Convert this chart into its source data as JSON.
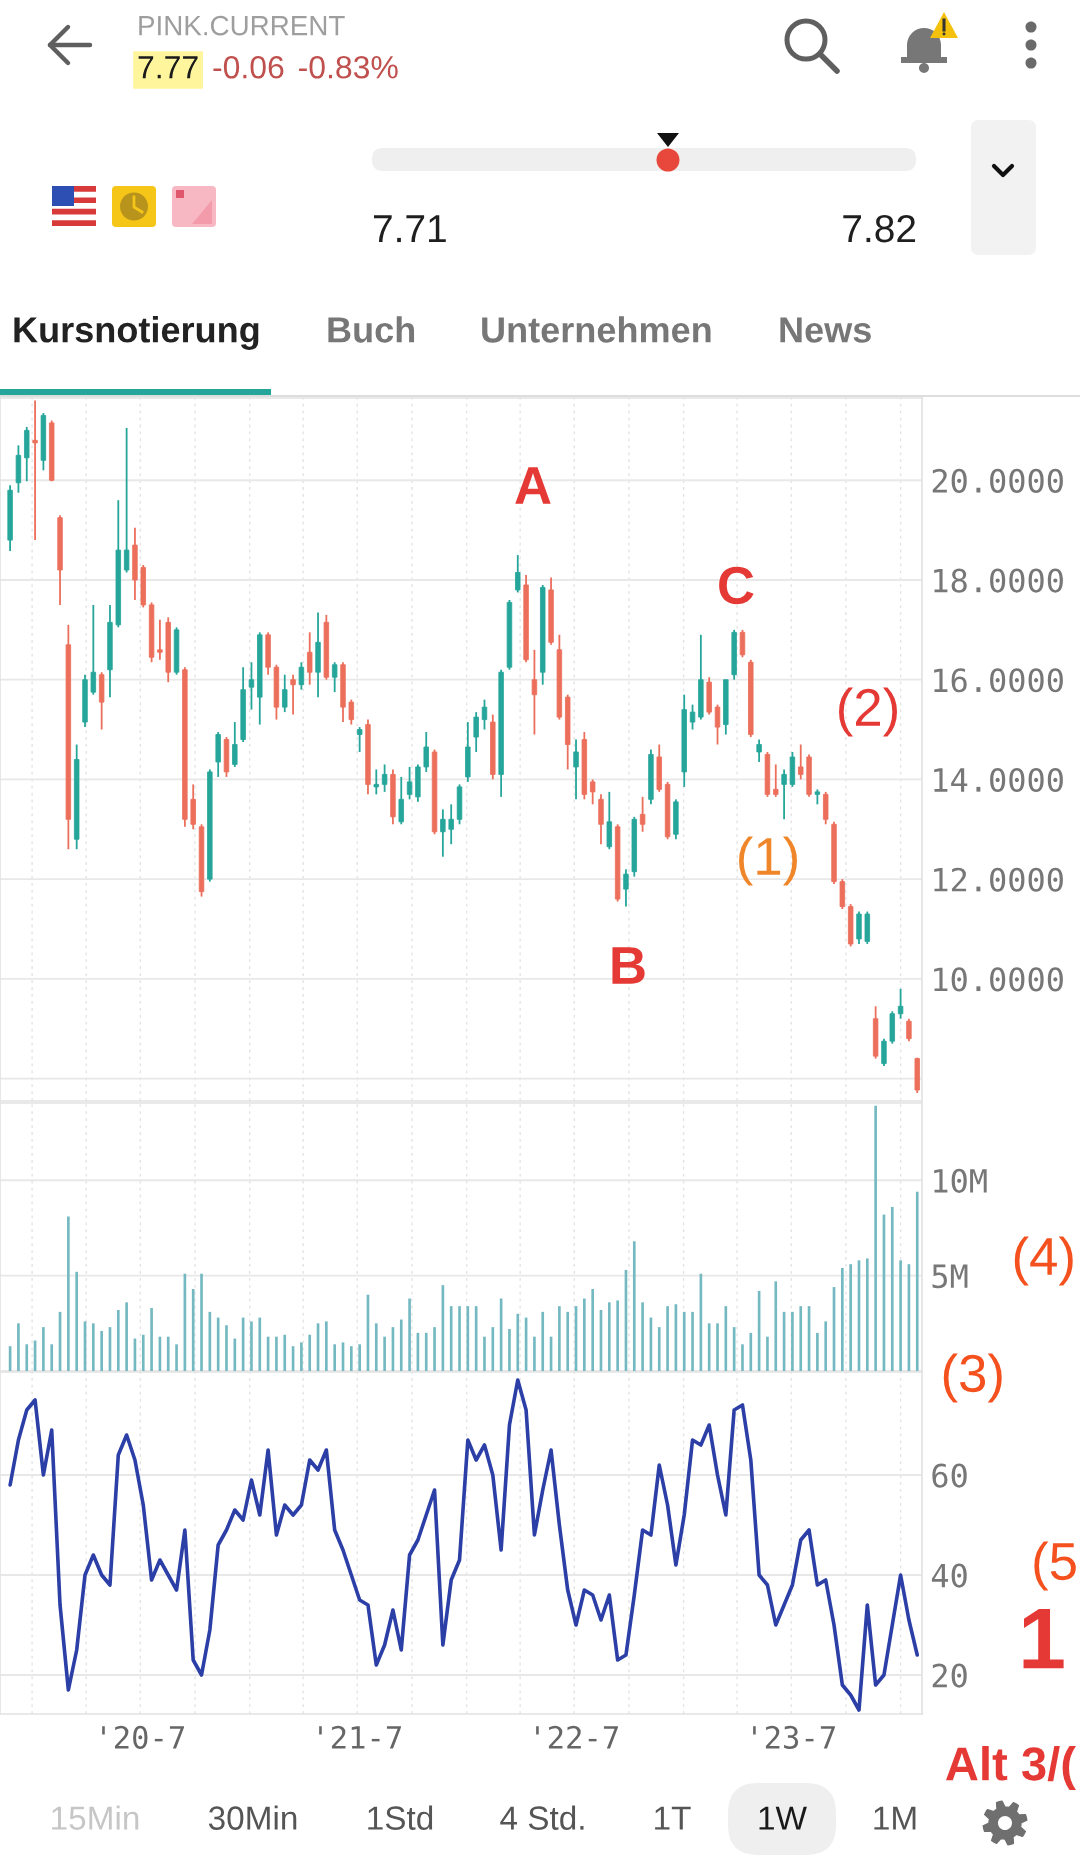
{
  "chart_data": [
    {
      "type": "other",
      "title": "PINK.CURRENT",
      "annotations": [
        "7.77",
        "-0.06",
        "-0.83%"
      ]
    },
    {
      "type": "other",
      "annotations": [
        "7.71",
        "7.82"
      ]
    },
    {
      "type": "other",
      "annotations": [
        "Kursnotierung",
        "Buch",
        "Unternehmen",
        "News"
      ]
    },
    {
      "type": "candlestick",
      "x": [
        "2019-11-25",
        "2019-12-09",
        "2019-12-23",
        "2020-01-06",
        "2020-01-20",
        "2020-02-03",
        "2020-02-17",
        "2020-03-02",
        "2020-03-16",
        "2020-03-30",
        "2020-04-13",
        "2020-04-27",
        "2020-05-11",
        "2020-05-25",
        "2020-06-08",
        "2020-06-22",
        "2020-07-06",
        "2020-07-20",
        "2020-08-03",
        "2020-08-17",
        "2020-08-31",
        "2020-09-14",
        "2020-09-28",
        "2020-10-12",
        "2020-10-26",
        "2020-11-09",
        "2020-11-23",
        "2020-12-07",
        "2020-12-21",
        "2021-01-04",
        "2021-01-18",
        "2021-02-01",
        "2021-02-15",
        "2021-03-01",
        "2021-03-15",
        "2021-03-29",
        "2021-04-12",
        "2021-04-26",
        "2021-05-10",
        "2021-05-24",
        "2021-06-07",
        "2021-06-21",
        "2021-07-05",
        "2021-07-19",
        "2021-08-02",
        "2021-08-16",
        "2021-08-30",
        "2021-09-13",
        "2021-09-27",
        "2021-10-11",
        "2021-10-25",
        "2021-11-08",
        "2021-11-22",
        "2021-12-06",
        "2021-12-20",
        "2022-01-03",
        "2022-01-17",
        "2022-01-31",
        "2022-02-14",
        "2022-02-28",
        "2022-03-14",
        "2022-03-28",
        "2022-04-11",
        "2022-04-25",
        "2022-05-09",
        "2022-05-23",
        "2022-06-06",
        "2022-06-20",
        "2022-07-04",
        "2022-07-18",
        "2022-08-01",
        "2022-08-15",
        "2022-08-29",
        "2022-09-12",
        "2022-09-26",
        "2022-10-10",
        "2022-10-24",
        "2022-11-07",
        "2022-11-21",
        "2022-12-05",
        "2022-12-19",
        "2023-01-02",
        "2023-01-16",
        "2023-01-30",
        "2023-02-13",
        "2023-02-27",
        "2023-03-13",
        "2023-03-27",
        "2023-04-10",
        "2023-04-24",
        "2023-05-08",
        "2023-05-22",
        "2023-06-05",
        "2023-06-19",
        "2023-07-03",
        "2023-07-17",
        "2023-07-31",
        "2023-08-14",
        "2023-08-28",
        "2023-09-11",
        "2023-09-25",
        "2023-10-09",
        "2023-10-23",
        "2023-11-06",
        "2023-11-20",
        "2023-12-04",
        "2023-12-18",
        "2024-01-01",
        "2024-01-15",
        "2024-01-29"
      ],
      "ohlc": [
        [
          18.8,
          19.9,
          18.58,
          19.8
        ],
        [
          19.95,
          20.7,
          19.75,
          20.5
        ],
        [
          20.45,
          21.07,
          19.98,
          21.0
        ],
        [
          20.8,
          21.6,
          18.8,
          20.75
        ],
        [
          20.4,
          21.35,
          20.2,
          21.3
        ],
        [
          21.15,
          21.2,
          19.98,
          20.0
        ],
        [
          19.25,
          19.3,
          17.5,
          18.2
        ],
        [
          16.7,
          17.1,
          12.6,
          13.2
        ],
        [
          12.8,
          14.7,
          12.6,
          14.4
        ],
        [
          15.15,
          16.1,
          15.05,
          16.0
        ],
        [
          15.75,
          17.5,
          15.7,
          16.15
        ],
        [
          16.1,
          16.15,
          15.0,
          15.55
        ],
        [
          16.2,
          17.5,
          15.65,
          17.15
        ],
        [
          17.1,
          19.6,
          17.05,
          18.6
        ],
        [
          18.2,
          21.05,
          18.15,
          18.6
        ],
        [
          18.7,
          19.05,
          17.6,
          18.0
        ],
        [
          18.25,
          18.3,
          17.45,
          17.5
        ],
        [
          17.5,
          17.55,
          16.35,
          16.45
        ],
        [
          16.6,
          17.2,
          16.4,
          16.55
        ],
        [
          17.15,
          17.25,
          15.95,
          16.15
        ],
        [
          16.15,
          17.05,
          16.1,
          17.0
        ],
        [
          16.2,
          16.25,
          13.05,
          13.2
        ],
        [
          13.6,
          13.9,
          13.0,
          13.1
        ],
        [
          13.05,
          13.1,
          11.65,
          11.75
        ],
        [
          12.0,
          14.2,
          11.95,
          14.15
        ],
        [
          14.35,
          14.95,
          14.05,
          14.9
        ],
        [
          14.8,
          14.85,
          14.05,
          14.15
        ],
        [
          14.3,
          15.15,
          14.25,
          14.7
        ],
        [
          14.8,
          16.25,
          14.75,
          15.8
        ],
        [
          15.85,
          16.35,
          15.4,
          16.0
        ],
        [
          15.65,
          16.95,
          15.1,
          16.9
        ],
        [
          16.9,
          16.95,
          16.1,
          16.25
        ],
        [
          16.25,
          16.3,
          15.2,
          15.45
        ],
        [
          15.45,
          16.1,
          15.35,
          15.8
        ],
        [
          16.0,
          16.1,
          15.3,
          15.9
        ],
        [
          15.9,
          16.35,
          15.8,
          16.25
        ],
        [
          16.55,
          16.95,
          15.9,
          16.15
        ],
        [
          16.15,
          17.35,
          15.65,
          16.75
        ],
        [
          17.15,
          17.3,
          16.0,
          16.05
        ],
        [
          16.05,
          16.35,
          15.75,
          16.3
        ],
        [
          16.3,
          16.35,
          15.15,
          15.45
        ],
        [
          15.55,
          15.6,
          15.1,
          15.2
        ],
        [
          14.9,
          15.05,
          14.55,
          15.0
        ],
        [
          15.1,
          15.2,
          13.7,
          13.9
        ],
        [
          13.85,
          14.2,
          13.7,
          13.9
        ],
        [
          13.9,
          14.3,
          13.75,
          14.1
        ],
        [
          14.1,
          14.2,
          13.1,
          13.25
        ],
        [
          13.15,
          14.05,
          13.1,
          13.6
        ],
        [
          13.7,
          14.25,
          13.6,
          13.95
        ],
        [
          13.65,
          14.3,
          13.55,
          14.25
        ],
        [
          14.25,
          14.95,
          14.15,
          14.65
        ],
        [
          14.55,
          14.6,
          12.9,
          12.95
        ],
        [
          12.95,
          13.4,
          12.45,
          13.2
        ],
        [
          13.0,
          13.5,
          12.7,
          13.2
        ],
        [
          13.2,
          13.9,
          13.1,
          13.85
        ],
        [
          14.05,
          15.15,
          13.95,
          14.65
        ],
        [
          14.85,
          15.35,
          14.55,
          15.25
        ],
        [
          15.2,
          15.6,
          15.0,
          15.45
        ],
        [
          15.15,
          15.3,
          14.0,
          14.1
        ],
        [
          14.1,
          16.2,
          13.65,
          16.15
        ],
        [
          16.25,
          17.6,
          16.2,
          17.55
        ],
        [
          17.8,
          18.5,
          17.75,
          18.15
        ],
        [
          17.9,
          18.1,
          16.35,
          16.4
        ],
        [
          16.0,
          16.6,
          14.9,
          15.7
        ],
        [
          16.15,
          17.9,
          15.9,
          17.85
        ],
        [
          17.8,
          18.05,
          16.7,
          16.75
        ],
        [
          16.6,
          16.9,
          15.2,
          15.25
        ],
        [
          15.65,
          15.7,
          14.2,
          14.7
        ],
        [
          14.25,
          14.8,
          13.6,
          14.55
        ],
        [
          14.8,
          14.95,
          13.6,
          13.7
        ],
        [
          13.95,
          14.0,
          13.5,
          13.75
        ],
        [
          13.6,
          13.7,
          12.7,
          13.1
        ],
        [
          12.65,
          13.75,
          12.6,
          13.15
        ],
        [
          13.05,
          13.1,
          11.55,
          11.6
        ],
        [
          11.8,
          12.2,
          11.45,
          12.1
        ],
        [
          12.15,
          13.25,
          12.05,
          13.2
        ],
        [
          13.3,
          13.65,
          12.95,
          13.1
        ],
        [
          13.6,
          14.6,
          13.5,
          14.5
        ],
        [
          14.45,
          14.7,
          13.75,
          13.8
        ],
        [
          13.9,
          13.95,
          12.8,
          12.85
        ],
        [
          12.9,
          13.6,
          12.8,
          13.55
        ],
        [
          14.15,
          15.7,
          13.85,
          15.4
        ],
        [
          15.15,
          15.5,
          15.0,
          15.35
        ],
        [
          15.25,
          16.9,
          15.2,
          16.0
        ],
        [
          15.95,
          16.05,
          15.3,
          15.35
        ],
        [
          15.45,
          15.5,
          14.7,
          15.05
        ],
        [
          15.1,
          16.0,
          14.9,
          16.0
        ],
        [
          16.1,
          17.0,
          16.0,
          16.95
        ],
        [
          16.95,
          17.0,
          16.45,
          16.5
        ],
        [
          16.35,
          16.4,
          14.85,
          14.9
        ],
        [
          14.55,
          14.8,
          14.35,
          14.7
        ],
        [
          14.5,
          14.55,
          13.65,
          13.7
        ],
        [
          13.8,
          14.3,
          13.65,
          13.7
        ],
        [
          13.9,
          14.2,
          13.2,
          14.1
        ],
        [
          13.9,
          14.55,
          13.85,
          14.45
        ],
        [
          14.25,
          14.7,
          14.0,
          14.1
        ],
        [
          14.45,
          14.5,
          13.65,
          13.7
        ],
        [
          13.7,
          13.8,
          13.5,
          13.75
        ],
        [
          13.7,
          13.75,
          13.1,
          13.2
        ],
        [
          13.1,
          13.15,
          11.9,
          11.95
        ],
        [
          11.95,
          12.0,
          11.4,
          11.45
        ],
        [
          11.45,
          11.5,
          10.65,
          10.7
        ],
        [
          10.8,
          11.35,
          10.7,
          11.3
        ],
        [
          10.75,
          11.35,
          10.7,
          11.3
        ],
        [
          9.2,
          9.45,
          8.4,
          8.45
        ],
        [
          8.3,
          8.8,
          8.25,
          8.75
        ],
        [
          8.75,
          9.35,
          8.7,
          9.3
        ],
        [
          9.3,
          9.8,
          9.2,
          9.45
        ],
        [
          9.15,
          9.2,
          8.75,
          8.8
        ],
        [
          8.4,
          8.42,
          7.71,
          7.77
        ]
      ],
      "colors": [
        "#26a69a",
        "#26a69a",
        "#26a69a",
        "#ec6f5c",
        "#26a69a",
        "#ec6f5c",
        "#ec6f5c",
        "#ec6f5c",
        "#26a69a",
        "#26a69a",
        "#26a69a",
        "#ec6f5c",
        "#26a69a",
        "#26a69a",
        "#26a69a",
        "#ec6f5c",
        "#ec6f5c",
        "#ec6f5c",
        "#ec6f5c",
        "#ec6f5c",
        "#26a69a",
        "#ec6f5c",
        "#ec6f5c",
        "#ec6f5c",
        "#26a69a",
        "#26a69a",
        "#ec6f5c",
        "#26a69a",
        "#26a69a",
        "#26a69a",
        "#26a69a",
        "#ec6f5c",
        "#ec6f5c",
        "#26a69a",
        "#ec6f5c",
        "#26a69a",
        "#ec6f5c",
        "#26a69a",
        "#ec6f5c",
        "#26a69a",
        "#ec6f5c",
        "#ec6f5c",
        "#26a69a",
        "#ec6f5c",
        "#26a69a",
        "#26a69a",
        "#ec6f5c",
        "#26a69a",
        "#26a69a",
        "#26a69a",
        "#26a69a",
        "#ec6f5c",
        "#26a69a",
        "#26a69a",
        "#26a69a",
        "#26a69a",
        "#26a69a",
        "#26a69a",
        "#ec6f5c",
        "#26a69a",
        "#26a69a",
        "#26a69a",
        "#ec6f5c",
        "#ec6f5c",
        "#26a69a",
        "#ec6f5c",
        "#ec6f5c",
        "#ec6f5c",
        "#26a69a",
        "#ec6f5c",
        "#ec6f5c",
        "#ec6f5c",
        "#26a69a",
        "#ec6f5c",
        "#26a69a",
        "#26a69a",
        "#ec6f5c",
        "#26a69a",
        "#ec6f5c",
        "#ec6f5c",
        "#26a69a",
        "#26a69a",
        "#26a69a",
        "#26a69a",
        "#ec6f5c",
        "#ec6f5c",
        "#26a69a",
        "#26a69a",
        "#ec6f5c",
        "#ec6f5c",
        "#26a69a",
        "#ec6f5c",
        "#ec6f5c",
        "#26a69a",
        "#26a69a",
        "#ec6f5c",
        "#ec6f5c",
        "#26a69a",
        "#ec6f5c",
        "#ec6f5c",
        "#ec6f5c",
        "#ec6f5c",
        "#26a69a",
        "#26a69a",
        "#ec6f5c",
        "#26a69a",
        "#26a69a",
        "#26a69a",
        "#ec6f5c",
        "#ec6f5c"
      ],
      "xlim": [
        "2019-11-08",
        "2024-02-06"
      ],
      "xticks": [
        {
          "value": "2020-01",
          "label": null
        },
        {
          "value": "2020-04",
          "label": null
        },
        {
          "value": "2020-07",
          "label": null
        },
        {
          "value": "2020-10",
          "label": null
        },
        {
          "value": "2021-01",
          "label": null
        },
        {
          "value": "2021-04",
          "label": null
        },
        {
          "value": "2021-07",
          "label": null
        },
        {
          "value": "2021-10",
          "label": null
        },
        {
          "value": "2022-01",
          "label": null
        },
        {
          "value": "2022-04",
          "label": null
        },
        {
          "value": "2022-07",
          "label": null
        },
        {
          "value": "2022-10",
          "label": null
        },
        {
          "value": "2023-01",
          "label": null
        },
        {
          "value": "2023-04",
          "label": null
        },
        {
          "value": "2023-07",
          "label": null
        },
        {
          "value": "2023-10",
          "label": null
        },
        {
          "value": "2024-01",
          "label": null
        }
      ],
      "ylim": [
        7.55,
        21.65
      ],
      "yticks": [
        {
          "value": 8,
          "label": null
        },
        {
          "value": 10,
          "label": "10.0000"
        },
        {
          "value": 12,
          "label": "12.0000"
        },
        {
          "value": 14,
          "label": "14.0000"
        },
        {
          "value": 16,
          "label": "16.0000"
        },
        {
          "value": 18,
          "label": "18.0000"
        },
        {
          "value": 20,
          "label": "20.0000"
        }
      ],
      "tick_labels": "y",
      "grid": true,
      "annotations": [
        "A",
        "B",
        "C",
        "(1)",
        "(2)"
      ]
    },
    {
      "type": "bar",
      "x": [
        "2019-11-25",
        "2019-12-09",
        "2019-12-23",
        "2020-01-06",
        "2020-01-20",
        "2020-02-03",
        "2020-02-17",
        "2020-03-02",
        "2020-03-16",
        "2020-03-30",
        "2020-04-13",
        "2020-04-27",
        "2020-05-11",
        "2020-05-25",
        "2020-06-08",
        "2020-06-22",
        "2020-07-06",
        "2020-07-20",
        "2020-08-03",
        "2020-08-17",
        "2020-08-31",
        "2020-09-14",
        "2020-09-28",
        "2020-10-12",
        "2020-10-26",
        "2020-11-09",
        "2020-11-23",
        "2020-12-07",
        "2020-12-21",
        "2021-01-04",
        "2021-01-18",
        "2021-02-01",
        "2021-02-15",
        "2021-03-01",
        "2021-03-15",
        "2021-03-29",
        "2021-04-12",
        "2021-04-26",
        "2021-05-10",
        "2021-05-24",
        "2021-06-07",
        "2021-06-21",
        "2021-07-05",
        "2021-07-19",
        "2021-08-02",
        "2021-08-16",
        "2021-08-30",
        "2021-09-13",
        "2021-09-27",
        "2021-10-11",
        "2021-10-25",
        "2021-11-08",
        "2021-11-22",
        "2021-12-06",
        "2021-12-20",
        "2022-01-03",
        "2022-01-17",
        "2022-01-31",
        "2022-02-14",
        "2022-02-28",
        "2022-03-14",
        "2022-03-28",
        "2022-04-11",
        "2022-04-25",
        "2022-05-09",
        "2022-05-23",
        "2022-06-06",
        "2022-06-20",
        "2022-07-04",
        "2022-07-18",
        "2022-08-01",
        "2022-08-15",
        "2022-08-29",
        "2022-09-12",
        "2022-09-26",
        "2022-10-10",
        "2022-10-24",
        "2022-11-07",
        "2022-11-21",
        "2022-12-05",
        "2022-12-19",
        "2023-01-02",
        "2023-01-16",
        "2023-01-30",
        "2023-02-13",
        "2023-02-27",
        "2023-03-13",
        "2023-03-27",
        "2023-04-10",
        "2023-04-24",
        "2023-05-08",
        "2023-05-22",
        "2023-06-05",
        "2023-06-19",
        "2023-07-03",
        "2023-07-17",
        "2023-07-31",
        "2023-08-14",
        "2023-08-28",
        "2023-09-11",
        "2023-09-25",
        "2023-10-09",
        "2023-10-23",
        "2023-11-06",
        "2023-11-20",
        "2023-12-04",
        "2023-12-18",
        "2024-01-01",
        "2024-01-15",
        "2024-01-29"
      ],
      "values": [
        1.3,
        2.5,
        1.4,
        1.6,
        2.3,
        1.4,
        3.1,
        8.1,
        5.2,
        2.6,
        2.5,
        2.1,
        2.3,
        3.2,
        3.6,
        1.7,
        1.9,
        3.3,
        1.8,
        1.8,
        1.4,
        5.1,
        4.3,
        5.1,
        3.1,
        2.8,
        2.4,
        1.7,
        2.8,
        2.6,
        2.8,
        1.8,
        1.8,
        1.9,
        1.3,
        1.5,
        1.9,
        2.5,
        2.6,
        1.4,
        1.5,
        1.3,
        1.4,
        4.0,
        2.5,
        1.8,
        2.3,
        2.7,
        3.8,
        2.0,
        2.0,
        2.3,
        4.5,
        3.4,
        3.4,
        3.4,
        3.4,
        1.8,
        2.3,
        3.8,
        2.2,
        3.0,
        2.8,
        1.8,
        3.1,
        1.8,
        3.4,
        3.1,
        3.4,
        3.8,
        4.3,
        3.2,
        3.6,
        3.7,
        5.3,
        6.8,
        3.6,
        2.8,
        2.3,
        3.4,
        3.5,
        3.1,
        3.1,
        5.1,
        2.5,
        2.5,
        3.4,
        2.3,
        1.4,
        2.0,
        4.2,
        1.8,
        4.7,
        3.1,
        3.1,
        3.4,
        3.4,
        2.0,
        2.6,
        4.4,
        5.4,
        5.6,
        5.8,
        5.9,
        13.9,
        8.2,
        8.6,
        5.8,
        5.6,
        9.4
      ],
      "color": "#74b9c1",
      "xlim": [
        "2019-11-08",
        "2024-02-06"
      ],
      "xticks": [
        {
          "value": "2020-01",
          "label": null
        },
        {
          "value": "2020-04",
          "label": null
        },
        {
          "value": "2020-07",
          "label": null
        },
        {
          "value": "2020-10",
          "label": null
        },
        {
          "value": "2021-01",
          "label": null
        },
        {
          "value": "2021-04",
          "label": null
        },
        {
          "value": "2021-07",
          "label": null
        },
        {
          "value": "2021-10",
          "label": null
        },
        {
          "value": "2022-01",
          "label": null
        },
        {
          "value": "2022-04",
          "label": null
        },
        {
          "value": "2022-07",
          "label": null
        },
        {
          "value": "2022-10",
          "label": null
        },
        {
          "value": "2023-01",
          "label": null
        },
        {
          "value": "2023-04",
          "label": null
        },
        {
          "value": "2023-07",
          "label": null
        },
        {
          "value": "2023-10",
          "label": null
        },
        {
          "value": "2024-01",
          "label": null
        }
      ],
      "ylim": [
        0,
        14.05
      ],
      "yticks": [
        {
          "value": 5,
          "label": "5M"
        },
        {
          "value": 10,
          "label": "10M"
        }
      ],
      "tick_labels": "y",
      "grid": true,
      "annotations": [
        "(4)",
        "(3)"
      ]
    },
    {
      "type": "line",
      "x": [
        "2019-11-25",
        "2019-12-09",
        "2019-12-23",
        "2020-01-06",
        "2020-01-20",
        "2020-02-03",
        "2020-02-17",
        "2020-03-02",
        "2020-03-16",
        "2020-03-30",
        "2020-04-13",
        "2020-04-27",
        "2020-05-11",
        "2020-05-25",
        "2020-06-08",
        "2020-06-22",
        "2020-07-06",
        "2020-07-20",
        "2020-08-03",
        "2020-08-17",
        "2020-08-31",
        "2020-09-14",
        "2020-09-28",
        "2020-10-12",
        "2020-10-26",
        "2020-11-09",
        "2020-11-23",
        "2020-12-07",
        "2020-12-21",
        "2021-01-04",
        "2021-01-18",
        "2021-02-01",
        "2021-02-15",
        "2021-03-01",
        "2021-03-15",
        "2021-03-29",
        "2021-04-12",
        "2021-04-26",
        "2021-05-10",
        "2021-05-24",
        "2021-06-07",
        "2021-06-21",
        "2021-07-05",
        "2021-07-19",
        "2021-08-02",
        "2021-08-16",
        "2021-08-30",
        "2021-09-13",
        "2021-09-27",
        "2021-10-11",
        "2021-10-25",
        "2021-11-08",
        "2021-11-22",
        "2021-12-06",
        "2021-12-20",
        "2022-01-03",
        "2022-01-17",
        "2022-01-31",
        "2022-02-14",
        "2022-02-28",
        "2022-03-14",
        "2022-03-28",
        "2022-04-11",
        "2022-04-25",
        "2022-05-09",
        "2022-05-23",
        "2022-06-06",
        "2022-06-20",
        "2022-07-04",
        "2022-07-18",
        "2022-08-01",
        "2022-08-15",
        "2022-08-29",
        "2022-09-12",
        "2022-09-26",
        "2022-10-10",
        "2022-10-24",
        "2022-11-07",
        "2022-11-21",
        "2022-12-05",
        "2022-12-19",
        "2023-01-02",
        "2023-01-16",
        "2023-01-30",
        "2023-02-13",
        "2023-02-27",
        "2023-03-13",
        "2023-03-27",
        "2023-04-10",
        "2023-04-24",
        "2023-05-08",
        "2023-05-22",
        "2023-06-05",
        "2023-06-19",
        "2023-07-03",
        "2023-07-17",
        "2023-07-31",
        "2023-08-14",
        "2023-08-28",
        "2023-09-11",
        "2023-09-25",
        "2023-10-09",
        "2023-10-23",
        "2023-11-06",
        "2023-11-20",
        "2023-12-04",
        "2023-12-18",
        "2024-01-01",
        "2024-01-15",
        "2024-01-29"
      ],
      "values": [
        58,
        67,
        73,
        75,
        60,
        69,
        34,
        17,
        25,
        40,
        44,
        40,
        38,
        64,
        68,
        63,
        54,
        39,
        43,
        40,
        37,
        49,
        23,
        20,
        29,
        46,
        49,
        53,
        51,
        59,
        52,
        65,
        48,
        54,
        52,
        54,
        63,
        61,
        65,
        49,
        45,
        40,
        35,
        34,
        22,
        26,
        33,
        25,
        44,
        47,
        52,
        57,
        26,
        39,
        43,
        67,
        63,
        66,
        60,
        45,
        70,
        79,
        73,
        48,
        57,
        65,
        50,
        37,
        30,
        37,
        36,
        31,
        36,
        23,
        24,
        36,
        49,
        48,
        62,
        54,
        42,
        52,
        67,
        66,
        70,
        60,
        52,
        73,
        74,
        63,
        40,
        38,
        30,
        34,
        38,
        47,
        49,
        38,
        39,
        30,
        18,
        16,
        13,
        34,
        18,
        20,
        30,
        40,
        31,
        24
      ],
      "color": "#2b3fa7",
      "xlim": [
        "2019-11-08",
        "2024-02-06"
      ],
      "xticks": [
        {
          "value": "2020-01",
          "label": null
        },
        {
          "value": "2020-04",
          "label": null
        },
        {
          "value": "2020-07",
          "label": "'20-7"
        },
        {
          "value": "2020-10",
          "label": null
        },
        {
          "value": "2021-01",
          "label": null
        },
        {
          "value": "2021-04",
          "label": null
        },
        {
          "value": "2021-07",
          "label": "'21-7"
        },
        {
          "value": "2021-10",
          "label": null
        },
        {
          "value": "2022-01",
          "label": null
        },
        {
          "value": "2022-04",
          "label": null
        },
        {
          "value": "2022-07",
          "label": "'22-7"
        },
        {
          "value": "2022-10",
          "label": null
        },
        {
          "value": "2023-01",
          "label": null
        },
        {
          "value": "2023-04",
          "label": null
        },
        {
          "value": "2023-07",
          "label": "'23-7"
        },
        {
          "value": "2023-10",
          "label": null
        },
        {
          "value": "2024-01",
          "label": null
        }
      ],
      "ylim": [
        12.2,
        80.6
      ],
      "yticks": [
        20,
        40,
        60
      ],
      "grid": true,
      "annotations": [
        "(5",
        "1",
        "Alt 3/("
      ]
    },
    {
      "type": "other",
      "annotations": [
        "15Min",
        "30Min",
        "1Std",
        "4 Std.",
        "1T",
        "1W",
        "1M"
      ]
    }
  ]
}
